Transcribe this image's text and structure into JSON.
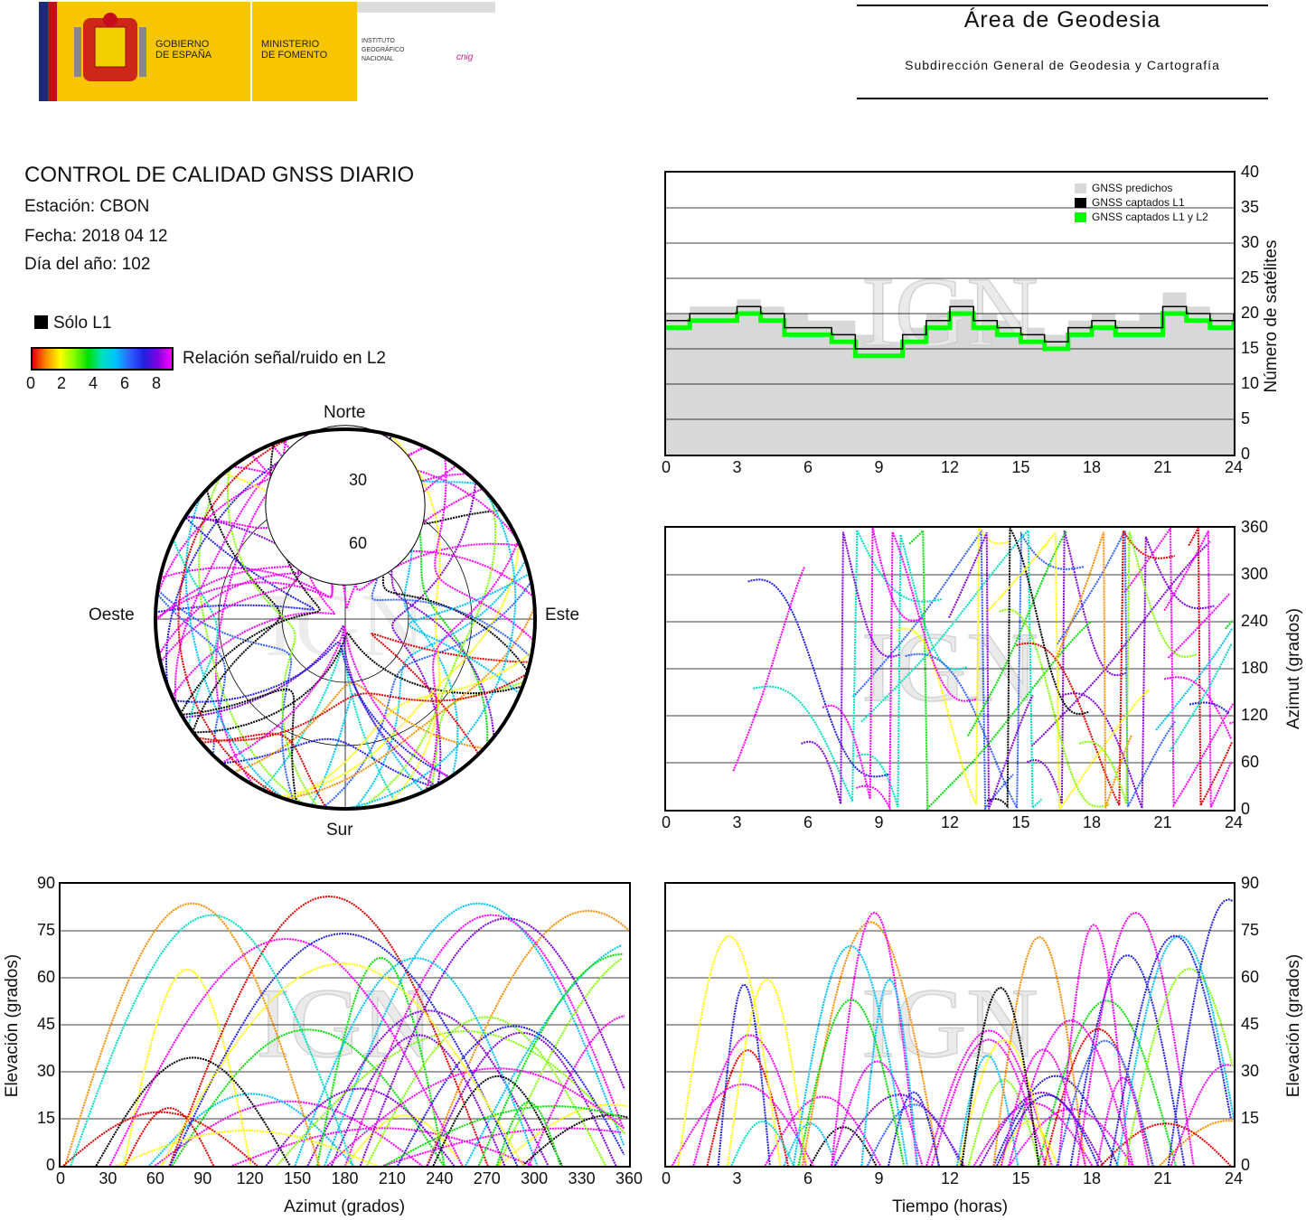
{
  "header": {
    "gov_line1": "GOBIERNO",
    "gov_line2": "DE ESPAÑA",
    "min_line1": "MINISTERIO",
    "min_line2": "DE FOMENTO",
    "ign_line1": "INSTITUTO",
    "ign_line2": "GEOGRÁFICO",
    "ign_line3": "NACIONAL",
    "cnig": "cnig",
    "area_title": "Área de Geodesia",
    "area_subtitle": "Subdirección General de Geodesia y Cartografía"
  },
  "report": {
    "title": "CONTROL DE CALIDAD GNSS DIARIO",
    "station": "Estación: CBON",
    "date": "Fecha: 2018 04 12",
    "doy": "Día del año: 102"
  },
  "legend": {
    "only_l1": "Sólo L1",
    "snr_label": "Relación señal/ruido en L2",
    "snr_ticks": [
      "0",
      "2",
      "4",
      "6",
      "8"
    ]
  },
  "watermark": "IGN",
  "colors": {
    "l1l2": "#00ff00",
    "l1": "#000000",
    "predicted": "#d8d8d8",
    "magenta": "#ff00ff"
  },
  "chart_data": [
    {
      "type": "area",
      "id": "satellite-count",
      "ylabel": "Número de satélites",
      "xlim": [
        0,
        24
      ],
      "ylim": [
        0,
        40
      ],
      "xticks": [
        "0",
        "3",
        "6",
        "9",
        "12",
        "15",
        "18",
        "21",
        "24"
      ],
      "yticks": [
        "0",
        "5",
        "10",
        "15",
        "20",
        "25",
        "30",
        "35",
        "40"
      ],
      "legend": [
        "GNSS predichos",
        "GNSS captados L1",
        "GNSS captados L1 y L2"
      ],
      "legend_position": "top-right",
      "grid": true,
      "x": [
        0,
        1,
        2,
        3,
        4,
        5,
        6,
        7,
        8,
        9,
        10,
        11,
        12,
        13,
        14,
        15,
        16,
        17,
        18,
        19,
        20,
        21,
        22,
        23,
        24
      ],
      "series": [
        {
          "name": "GNSS predichos",
          "values": [
            20,
            21,
            21,
            22,
            21,
            20,
            19,
            19,
            17,
            16,
            18,
            20,
            22,
            20,
            19,
            18,
            17,
            19,
            20,
            19,
            20,
            23,
            21,
            20,
            21
          ]
        },
        {
          "name": "GNSS captados L1",
          "values": [
            19,
            20,
            20,
            21,
            20,
            18,
            18,
            17,
            15,
            15,
            17,
            19,
            21,
            19,
            18,
            17,
            16,
            18,
            19,
            18,
            18,
            21,
            20,
            19,
            20
          ]
        },
        {
          "name": "GNSS captados L1 y L2",
          "values": [
            18,
            19,
            19,
            20,
            19,
            17,
            17,
            16,
            14,
            14,
            16,
            18,
            20,
            18,
            17,
            16,
            15,
            17,
            18,
            17,
            17,
            20,
            19,
            18,
            19
          ]
        }
      ]
    },
    {
      "type": "scatter",
      "id": "azimuth-vs-time",
      "ylabel": "Azimut (grados)",
      "xlim": [
        0,
        24
      ],
      "ylim": [
        0,
        360
      ],
      "xticks": [
        "0",
        "3",
        "6",
        "9",
        "12",
        "15",
        "18",
        "21",
        "24"
      ],
      "yticks": [
        "0",
        "60",
        "120",
        "180",
        "240",
        "300",
        "360"
      ],
      "grid": true
    },
    {
      "type": "scatter",
      "id": "elevation-vs-azimuth",
      "xlabel": "Azimut (grados)",
      "ylabel": "Elevación (grados)",
      "xlim": [
        0,
        360
      ],
      "ylim": [
        0,
        90
      ],
      "xticks": [
        "0",
        "30",
        "60",
        "90",
        "120",
        "150",
        "180",
        "210",
        "240",
        "270",
        "300",
        "330",
        "360"
      ],
      "yticks": [
        "0",
        "15",
        "30",
        "45",
        "60",
        "75",
        "90"
      ],
      "grid": true
    },
    {
      "type": "scatter",
      "id": "elevation-vs-time",
      "xlabel": "Tiempo (horas)",
      "ylabel": "Elevación (grados)",
      "xlim": [
        0,
        24
      ],
      "ylim": [
        0,
        90
      ],
      "xticks": [
        "0",
        "3",
        "6",
        "9",
        "12",
        "15",
        "18",
        "21",
        "24"
      ],
      "yticks": [
        "0",
        "15",
        "30",
        "45",
        "60",
        "75",
        "90"
      ],
      "grid": true
    },
    {
      "type": "scatter",
      "id": "skyplot",
      "labels": {
        "north": "Norte",
        "south": "Sur",
        "east": "Este",
        "west": "Oeste"
      },
      "rings": [
        "30",
        "60"
      ]
    }
  ]
}
